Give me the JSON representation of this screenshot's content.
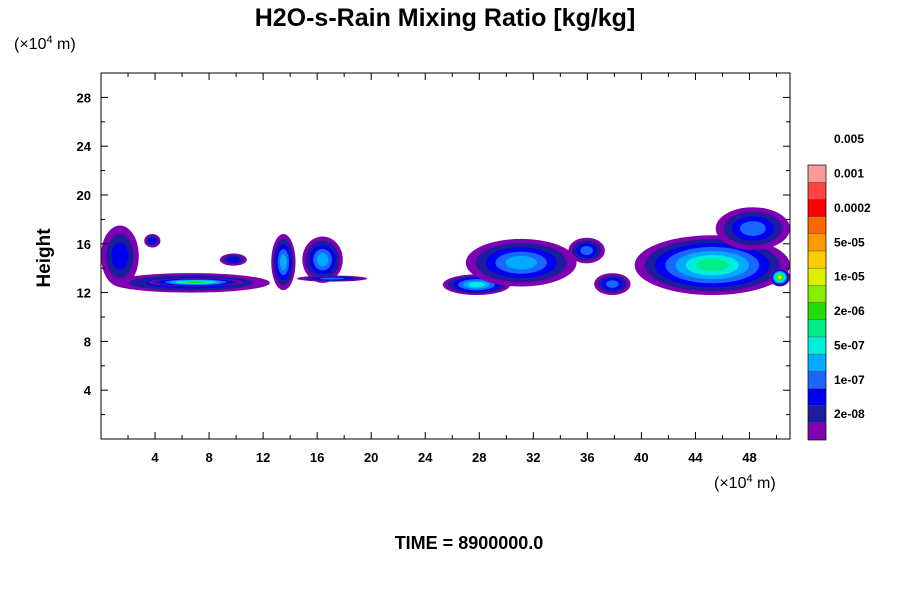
{
  "chart_data": {
    "type": "heatmap",
    "title": "H2O-s-Rain Mixing Ratio [kg/kg]",
    "ylabel": "Height",
    "xlabel": "",
    "x_unit_prefix": "(×10",
    "x_unit_exp": "4",
    "x_unit_suffix": " m)",
    "y_unit_prefix": "(×10",
    "y_unit_exp": "4",
    "y_unit_suffix": " m)",
    "xlim": [
      0,
      51
    ],
    "ylim": [
      0,
      30
    ],
    "x_ticks": [
      4,
      8,
      12,
      16,
      20,
      24,
      28,
      32,
      36,
      40,
      44,
      48
    ],
    "y_ticks": [
      4,
      8,
      12,
      16,
      20,
      24,
      28
    ],
    "grid": false,
    "colorbar": {
      "levels": [
        "2e-08",
        "1e-07",
        "5e-07",
        "2e-06",
        "1e-05",
        "5e-05",
        "0.0002",
        "0.001",
        "0.005"
      ],
      "colors": [
        "#7f00b2",
        "#1c1c9c",
        "#0000f0",
        "#1a66ff",
        "#00aaff",
        "#00eedd",
        "#00ee88",
        "#22dd00",
        "#88ee00",
        "#ddee00",
        "#ffcc00",
        "#ff9900",
        "#ff6600",
        "#ff0000",
        "#ff4444",
        "#ff9999"
      ]
    },
    "cloud_regions": [
      {
        "x": [
          0,
          2.8
        ],
        "y": [
          12.5,
          17.5
        ],
        "level": 2
      },
      {
        "x": [
          0.8,
          12.5
        ],
        "y": [
          12,
          13.6
        ],
        "level": 3
      },
      {
        "x": [
          3.5,
          10.5
        ],
        "y": [
          12.5,
          13.2
        ],
        "level": 7
      },
      {
        "x": [
          3.2,
          4.4
        ],
        "y": [
          15.7,
          16.8
        ],
        "level": 2
      },
      {
        "x": [
          8.8,
          10.8
        ],
        "y": [
          14.2,
          15.2
        ],
        "level": 2
      },
      {
        "x": [
          12.6,
          14.4
        ],
        "y": [
          12.2,
          16.8
        ],
        "level": 4
      },
      {
        "x": [
          14.9,
          17.9
        ],
        "y": [
          12.8,
          16.6
        ],
        "level": 4
      },
      {
        "x": [
          14.5,
          19.7
        ],
        "y": [
          12.9,
          13.4
        ],
        "level": 3
      },
      {
        "x": [
          25.3,
          30.3
        ],
        "y": [
          11.8,
          13.5
        ],
        "level": 5
      },
      {
        "x": [
          27,
          35.2
        ],
        "y": [
          12.5,
          16.4
        ],
        "level": 4
      },
      {
        "x": [
          34.6,
          37.3
        ],
        "y": [
          14.4,
          16.5
        ],
        "level": 3
      },
      {
        "x": [
          36.5,
          39.2
        ],
        "y": [
          11.8,
          13.6
        ],
        "level": 3
      },
      {
        "x": [
          39.5,
          51
        ],
        "y": [
          11.8,
          16.7
        ],
        "level": 6
      },
      {
        "x": [
          45.5,
          51
        ],
        "y": [
          15.5,
          19
        ],
        "level": 3
      },
      {
        "x": [
          49.5,
          51
        ],
        "y": [
          12.5,
          14
        ],
        "level": 9
      }
    ]
  },
  "footer": {
    "time_label": "TIME = 8900000.0"
  }
}
